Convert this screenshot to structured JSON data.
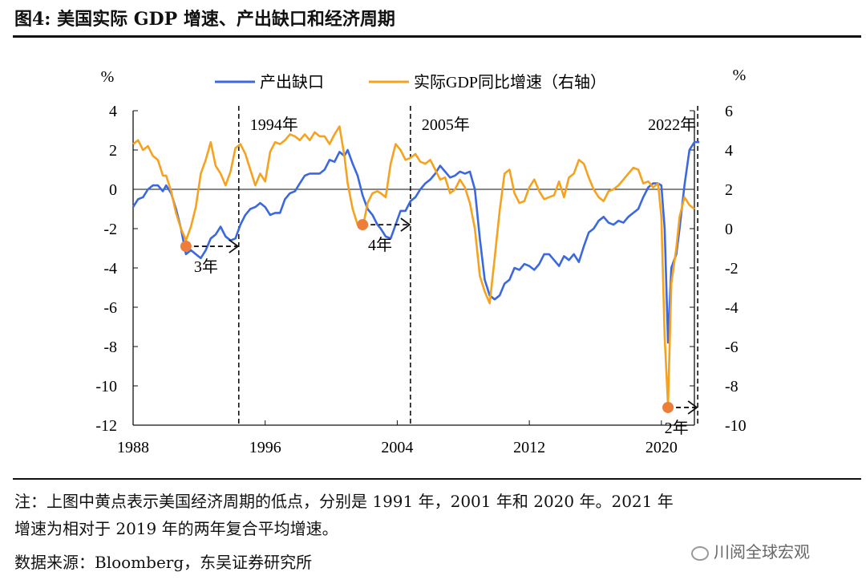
{
  "header": {
    "title": "图4: 美国实际 GDP 增速、产出缺口和经济周期"
  },
  "chart_data": {
    "type": "line",
    "title": "图4: 美国实际 GDP 增速、产出缺口和经济周期",
    "left_axis": {
      "unit": "%",
      "range": [
        -12,
        4
      ],
      "ticks": [
        "4",
        "2",
        "0",
        "-2",
        "-4",
        "-6",
        "-8",
        "-10",
        "-12"
      ]
    },
    "right_axis": {
      "unit": "%",
      "range": [
        -10,
        6
      ],
      "ticks": [
        "6",
        "4",
        "2",
        "0",
        "-2",
        "-4",
        "-6",
        "-8",
        "-10"
      ]
    },
    "x_axis": {
      "range": [
        1988,
        2022
      ],
      "ticks": [
        "1988",
        "1996",
        "2004",
        "2012",
        "2020"
      ]
    },
    "legend": {
      "placement": "top",
      "entries": [
        "产出缺口",
        "实际GDP同比增速（右轴）"
      ]
    },
    "colors": {
      "output_gap": "#3b68e0",
      "gdp": "#f5a31f",
      "trough": "#ee7d3a",
      "axis": "#111111"
    },
    "series": [
      {
        "name": "产出缺口",
        "axis": "left",
        "points": [
          [
            1988.0,
            -0.9
          ],
          [
            1988.3,
            -0.5
          ],
          [
            1988.6,
            -0.4
          ],
          [
            1988.9,
            0.0
          ],
          [
            1989.2,
            0.2
          ],
          [
            1989.5,
            0.2
          ],
          [
            1989.8,
            -0.1
          ],
          [
            1990.0,
            0.2
          ],
          [
            1990.3,
            -0.2
          ],
          [
            1990.6,
            -1.0
          ],
          [
            1990.9,
            -2.0
          ],
          [
            1991.2,
            -3.3
          ],
          [
            1991.5,
            -3.1
          ],
          [
            1991.8,
            -3.3
          ],
          [
            1992.1,
            -3.5
          ],
          [
            1992.4,
            -3.1
          ],
          [
            1992.7,
            -2.5
          ],
          [
            1993.0,
            -2.3
          ],
          [
            1993.3,
            -1.9
          ],
          [
            1993.6,
            -2.4
          ],
          [
            1993.9,
            -2.6
          ],
          [
            1994.2,
            -2.5
          ],
          [
            1994.5,
            -1.8
          ],
          [
            1994.8,
            -1.3
          ],
          [
            1995.1,
            -1.0
          ],
          [
            1995.4,
            -0.9
          ],
          [
            1995.7,
            -0.7
          ],
          [
            1996.0,
            -0.9
          ],
          [
            1996.3,
            -1.3
          ],
          [
            1996.6,
            -1.2
          ],
          [
            1996.9,
            -1.2
          ],
          [
            1997.2,
            -0.5
          ],
          [
            1997.5,
            -0.2
          ],
          [
            1997.8,
            -0.1
          ],
          [
            1998.1,
            0.3
          ],
          [
            1998.4,
            0.7
          ],
          [
            1998.7,
            0.8
          ],
          [
            1999.0,
            0.8
          ],
          [
            1999.3,
            0.8
          ],
          [
            1999.6,
            1.0
          ],
          [
            1999.9,
            1.5
          ],
          [
            2000.2,
            1.4
          ],
          [
            2000.5,
            1.9
          ],
          [
            2000.8,
            1.7
          ],
          [
            2001.0,
            2.0
          ],
          [
            2001.3,
            1.3
          ],
          [
            2001.6,
            0.7
          ],
          [
            2001.9,
            -0.3
          ],
          [
            2002.2,
            -1.0
          ],
          [
            2002.5,
            -1.3
          ],
          [
            2002.8,
            -1.8
          ],
          [
            2003.0,
            -2.0
          ],
          [
            2003.3,
            -2.4
          ],
          [
            2003.6,
            -2.5
          ],
          [
            2003.9,
            -1.8
          ],
          [
            2004.2,
            -1.1
          ],
          [
            2004.5,
            -1.1
          ],
          [
            2004.8,
            -0.6
          ],
          [
            2005.1,
            -0.4
          ],
          [
            2005.4,
            0.0
          ],
          [
            2005.7,
            0.3
          ],
          [
            2006.0,
            0.5
          ],
          [
            2006.3,
            0.8
          ],
          [
            2006.6,
            1.2
          ],
          [
            2006.9,
            0.9
          ],
          [
            2007.2,
            0.6
          ],
          [
            2007.5,
            0.7
          ],
          [
            2007.8,
            0.9
          ],
          [
            2008.1,
            0.8
          ],
          [
            2008.4,
            0.9
          ],
          [
            2008.7,
            0.0
          ],
          [
            2009.0,
            -2.5
          ],
          [
            2009.3,
            -4.6
          ],
          [
            2009.6,
            -5.4
          ],
          [
            2009.9,
            -5.6
          ],
          [
            2010.2,
            -5.4
          ],
          [
            2010.5,
            -4.8
          ],
          [
            2010.8,
            -4.6
          ],
          [
            2011.1,
            -4.0
          ],
          [
            2011.4,
            -4.1
          ],
          [
            2011.7,
            -3.8
          ],
          [
            2012.0,
            -3.9
          ],
          [
            2012.3,
            -4.1
          ],
          [
            2012.6,
            -3.8
          ],
          [
            2012.9,
            -3.3
          ],
          [
            2013.2,
            -3.3
          ],
          [
            2013.5,
            -3.6
          ],
          [
            2013.8,
            -3.9
          ],
          [
            2014.1,
            -3.4
          ],
          [
            2014.4,
            -3.6
          ],
          [
            2014.7,
            -3.3
          ],
          [
            2015.0,
            -3.7
          ],
          [
            2015.3,
            -2.9
          ],
          [
            2015.6,
            -2.2
          ],
          [
            2015.9,
            -2.0
          ],
          [
            2016.2,
            -1.6
          ],
          [
            2016.5,
            -1.4
          ],
          [
            2016.8,
            -1.7
          ],
          [
            2017.1,
            -1.8
          ],
          [
            2017.4,
            -1.6
          ],
          [
            2017.7,
            -1.7
          ],
          [
            2018.0,
            -1.4
          ],
          [
            2018.3,
            -1.2
          ],
          [
            2018.6,
            -1.0
          ],
          [
            2018.9,
            -0.4
          ],
          [
            2019.2,
            0.1
          ],
          [
            2019.5,
            0.3
          ],
          [
            2019.8,
            0.3
          ],
          [
            2020.0,
            0.2
          ],
          [
            2020.2,
            -2.0
          ],
          [
            2020.4,
            -7.8
          ],
          [
            2020.6,
            -4.0
          ],
          [
            2020.9,
            -3.3
          ],
          [
            2021.1,
            -2.0
          ],
          [
            2021.4,
            0.2
          ],
          [
            2021.7,
            2.0
          ],
          [
            2022.0,
            2.4
          ],
          [
            2022.3,
            2.4
          ]
        ]
      },
      {
        "name": "实际GDP同比增速（右轴）",
        "axis": "right",
        "points": [
          [
            1988.0,
            4.3
          ],
          [
            1988.3,
            4.5
          ],
          [
            1988.6,
            4.0
          ],
          [
            1988.9,
            4.2
          ],
          [
            1989.2,
            3.7
          ],
          [
            1989.5,
            3.5
          ],
          [
            1989.8,
            2.7
          ],
          [
            1990.0,
            2.7
          ],
          [
            1990.3,
            1.9
          ],
          [
            1990.6,
            0.8
          ],
          [
            1990.9,
            0.0
          ],
          [
            1991.2,
            -0.6
          ],
          [
            1991.5,
            0.1
          ],
          [
            1991.8,
            1.1
          ],
          [
            1992.1,
            2.8
          ],
          [
            1992.4,
            3.5
          ],
          [
            1992.7,
            4.4
          ],
          [
            1993.0,
            3.2
          ],
          [
            1993.3,
            2.8
          ],
          [
            1993.6,
            2.2
          ],
          [
            1993.9,
            2.9
          ],
          [
            1994.2,
            4.1
          ],
          [
            1994.5,
            4.3
          ],
          [
            1994.8,
            3.8
          ],
          [
            1995.1,
            3.0
          ],
          [
            1995.4,
            2.2
          ],
          [
            1995.7,
            2.8
          ],
          [
            1996.0,
            2.4
          ],
          [
            1996.3,
            3.9
          ],
          [
            1996.6,
            4.4
          ],
          [
            1996.9,
            4.3
          ],
          [
            1997.2,
            4.5
          ],
          [
            1997.5,
            4.8
          ],
          [
            1997.8,
            4.7
          ],
          [
            1998.1,
            4.5
          ],
          [
            1998.4,
            4.8
          ],
          [
            1998.7,
            4.5
          ],
          [
            1999.0,
            4.9
          ],
          [
            1999.3,
            4.7
          ],
          [
            1999.6,
            4.7
          ],
          [
            1999.9,
            4.3
          ],
          [
            2000.2,
            4.8
          ],
          [
            2000.5,
            5.2
          ],
          [
            2000.8,
            3.7
          ],
          [
            2001.0,
            2.3
          ],
          [
            2001.3,
            1.0
          ],
          [
            2001.6,
            0.2
          ],
          [
            2001.9,
            0.0
          ],
          [
            2002.2,
            1.3
          ],
          [
            2002.5,
            1.8
          ],
          [
            2002.8,
            1.9
          ],
          [
            2003.0,
            1.8
          ],
          [
            2003.3,
            1.6
          ],
          [
            2003.6,
            3.3
          ],
          [
            2003.9,
            4.3
          ],
          [
            2004.2,
            4.0
          ],
          [
            2004.5,
            3.5
          ],
          [
            2004.8,
            3.6
          ],
          [
            2005.1,
            3.8
          ],
          [
            2005.4,
            3.4
          ],
          [
            2005.7,
            3.3
          ],
          [
            2006.0,
            3.5
          ],
          [
            2006.3,
            3.0
          ],
          [
            2006.6,
            2.5
          ],
          [
            2006.9,
            2.6
          ],
          [
            2007.2,
            1.8
          ],
          [
            2007.5,
            2.0
          ],
          [
            2007.8,
            2.5
          ],
          [
            2008.1,
            2.1
          ],
          [
            2008.4,
            1.3
          ],
          [
            2008.7,
            0.0
          ],
          [
            2009.0,
            -2.4
          ],
          [
            2009.3,
            -3.2
          ],
          [
            2009.6,
            -3.8
          ],
          [
            2009.9,
            -1.5
          ],
          [
            2010.2,
            0.9
          ],
          [
            2010.5,
            2.8
          ],
          [
            2010.8,
            3.0
          ],
          [
            2011.1,
            1.8
          ],
          [
            2011.4,
            1.3
          ],
          [
            2011.7,
            1.4
          ],
          [
            2012.0,
            2.1
          ],
          [
            2012.3,
            2.5
          ],
          [
            2012.6,
            1.9
          ],
          [
            2012.9,
            1.5
          ],
          [
            2013.2,
            1.6
          ],
          [
            2013.5,
            1.7
          ],
          [
            2013.8,
            2.4
          ],
          [
            2014.1,
            1.6
          ],
          [
            2014.4,
            2.6
          ],
          [
            2014.7,
            2.8
          ],
          [
            2015.0,
            3.5
          ],
          [
            2015.3,
            3.3
          ],
          [
            2015.6,
            2.6
          ],
          [
            2015.9,
            2.0
          ],
          [
            2016.2,
            1.6
          ],
          [
            2016.5,
            1.4
          ],
          [
            2016.8,
            1.9
          ],
          [
            2017.1,
            2.0
          ],
          [
            2017.4,
            2.2
          ],
          [
            2017.7,
            2.5
          ],
          [
            2018.0,
            2.8
          ],
          [
            2018.3,
            3.1
          ],
          [
            2018.6,
            3.0
          ],
          [
            2018.9,
            2.3
          ],
          [
            2019.2,
            2.4
          ],
          [
            2019.5,
            2.1
          ],
          [
            2019.8,
            2.3
          ],
          [
            2020.0,
            0.6
          ],
          [
            2020.2,
            -5.5
          ],
          [
            2020.4,
            -9.0
          ],
          [
            2020.6,
            -2.8
          ],
          [
            2020.9,
            -1.0
          ],
          [
            2021.1,
            0.6
          ],
          [
            2021.4,
            1.6
          ],
          [
            2021.7,
            1.2
          ],
          [
            2022.0,
            1.0
          ]
        ]
      }
    ],
    "cycles": [
      {
        "start": 1991.2,
        "end": 1994.4,
        "label": "3年",
        "start_label": "1994年",
        "trough_value": -2.9
      },
      {
        "start": 2001.9,
        "end": 2004.8,
        "label": "4年",
        "start_label": "2005年",
        "trough_value": -1.8
      },
      {
        "start": 2020.4,
        "end": 2022.2,
        "label": "2年",
        "start_label": "2022年",
        "trough_value": -11.1
      }
    ]
  },
  "notes": {
    "line1": "注：上图中黄点表示美国经济周期的低点，分别是 1991 年，2001 年和 2020 年。2021 年",
    "line2": "增速为相对于 2019 年的两年复合平均增速。",
    "source": "数据来源：Bloomberg，东吴证券研究所"
  },
  "watermark": {
    "text": "川阅全球宏观"
  }
}
